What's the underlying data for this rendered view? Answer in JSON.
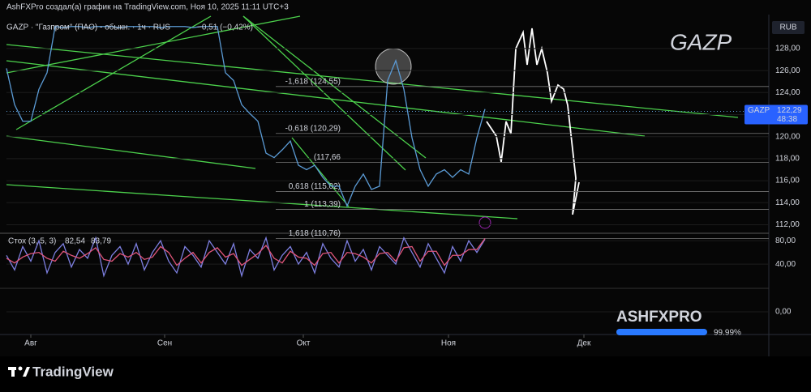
{
  "header": {
    "caption": "AshFXPro создал(а) график на TradingView.com, Ноя 10, 2025 11:11 UTC+3"
  },
  "chart_data": [
    {
      "type": "line",
      "legend_title": "GAZP · \"Газпром\" (ПАО) - обыкн. · 1ч · RUS",
      "change": "−0,51 (−0,42%)",
      "watermark": "GAZP",
      "currency": "RUB",
      "x": [
        0,
        1,
        2,
        3,
        4,
        5,
        6,
        7,
        8,
        9,
        10,
        11,
        12,
        13,
        14,
        15,
        16,
        17,
        18,
        19,
        20,
        21,
        22,
        23,
        24,
        25,
        26,
        27,
        28,
        29,
        30,
        31,
        32,
        33,
        34,
        35,
        36,
        37,
        38,
        39,
        40,
        41,
        42,
        43,
        44,
        45,
        46,
        47,
        48,
        49,
        50,
        51,
        52,
        53,
        54,
        55,
        56,
        57,
        58,
        59
      ],
      "series": [
        {
          "name": "GAZP",
          "color": "#5b9bd5",
          "values": [
            126.2,
            122.9,
            121.4,
            121.4,
            124.3,
            125.8,
            130.0,
            129.9,
            130.0,
            130.0,
            129.9,
            130.0,
            130.0,
            130.0,
            129.9,
            130.0,
            130.0,
            130.0,
            130.0,
            129.9,
            130.0,
            130.0,
            130.0,
            129.9,
            130.0,
            130.0,
            130.0,
            125.8,
            125.1,
            122.9,
            122.1,
            121.4,
            118.5,
            118.1,
            118.8,
            119.6,
            117.4,
            117.0,
            117.4,
            116.3,
            115.5,
            115.5,
            113.7,
            115.5,
            116.6,
            115.2,
            115.5,
            125.1,
            126.9,
            124.3,
            119.9,
            117.0,
            115.5,
            116.6,
            117.0,
            116.3,
            117.0,
            116.6,
            119.9,
            122.5
          ],
          "last_price": {
            "value": 122.29,
            "label": "122,29"
          },
          "countdown": "48:38"
        }
      ],
      "fib_levels": [
        {
          "value": 124.55,
          "label": "-1,618 (124,55)"
        },
        {
          "value": 120.29,
          "label": "-0,618 (120,29)"
        },
        {
          "value": 117.66,
          "label": "(117,66"
        },
        {
          "value": 115.02,
          "label": "0,618 (115,02)"
        },
        {
          "value": 113.39,
          "label": "1 (113,39)"
        },
        {
          "value": 110.76,
          "label": "1,618 (110,76)"
        }
      ],
      "xlim": [
        0,
        94
      ],
      "xticks": [
        {
          "value": 3,
          "label": "Авг"
        },
        {
          "value": 19.5,
          "label": "Сен"
        },
        {
          "value": 36.6,
          "label": "Окт"
        },
        {
          "value": 54.5,
          "label": "Ноя"
        },
        {
          "value": 71.2,
          "label": "Дек"
        }
      ],
      "ylim": [
        111.3,
        130.2
      ],
      "yticks": [
        {
          "value": 112,
          "label": "112,00"
        },
        {
          "value": 114,
          "label": "114,00"
        },
        {
          "value": 116,
          "label": "116,00"
        },
        {
          "value": 118,
          "label": "118,00"
        },
        {
          "value": 120,
          "label": "120,00"
        },
        {
          "value": 122,
          "label": "122,00"
        },
        {
          "value": 124,
          "label": "124,00"
        },
        {
          "value": 126,
          "label": "126,00"
        },
        {
          "value": 128,
          "label": "128,00"
        }
      ]
    },
    {
      "type": "line",
      "title": "Стох (3, 5, 3)",
      "x": [
        0,
        1,
        2,
        3,
        4,
        5,
        6,
        7,
        8,
        9,
        10,
        11,
        12,
        13,
        14,
        15,
        16,
        17,
        18,
        19,
        20,
        21,
        22,
        23,
        24,
        25,
        26,
        27,
        28,
        29,
        30,
        31,
        32,
        33,
        34,
        35,
        36,
        37,
        38,
        39,
        40,
        41,
        42,
        43,
        44,
        45,
        46,
        47,
        48,
        49,
        50,
        51,
        52,
        53,
        54,
        55,
        56,
        57,
        58,
        59
      ],
      "series": [
        {
          "color": "#7d7fe0",
          "last_value": 82.54,
          "last_label": "82,54",
          "values": [
            55,
            30,
            70,
            45,
            80,
            25,
            60,
            75,
            35,
            65,
            50,
            85,
            20,
            55,
            70,
            40,
            75,
            30,
            60,
            80,
            45,
            25,
            70,
            55,
            35,
            80,
            60,
            40,
            75,
            20,
            65,
            50,
            85,
            30,
            55,
            70,
            40,
            60,
            25,
            75,
            50,
            35,
            80,
            45,
            65,
            30,
            70,
            55,
            40,
            85,
            60,
            35,
            75,
            50,
            25,
            70,
            45,
            80,
            60,
            82.54
          ]
        },
        {
          "color": "#e0557a",
          "last_value": 83.79,
          "last_label": "83,79",
          "values": [
            50,
            42,
            52,
            58,
            60,
            50,
            45,
            62,
            55,
            50,
            58,
            68,
            48,
            45,
            58,
            52,
            60,
            48,
            52,
            70,
            60,
            38,
            50,
            60,
            42,
            60,
            68,
            52,
            58,
            38,
            48,
            58,
            72,
            50,
            42,
            62,
            52,
            50,
            38,
            58,
            60,
            42,
            60,
            58,
            52,
            42,
            58,
            60,
            45,
            68,
            70,
            45,
            62,
            62,
            38,
            55,
            55,
            65,
            65,
            83.79
          ]
        }
      ],
      "xlim": [
        0,
        94
      ],
      "ylim": [
        0,
        90
      ],
      "yticks": [
        {
          "value": 40,
          "label": "40,00"
        },
        {
          "value": 80,
          "label": "80,00"
        }
      ]
    },
    {
      "type": "empty",
      "ylim": [
        -1,
        1
      ],
      "yticks": [
        {
          "value": 0,
          "label": "0,00"
        }
      ]
    }
  ],
  "badge": {
    "title": "ASHFXPRO",
    "progress": {
      "value": 99.99,
      "label": "99.99%"
    }
  },
  "footer": {
    "brand": "TradingView"
  }
}
